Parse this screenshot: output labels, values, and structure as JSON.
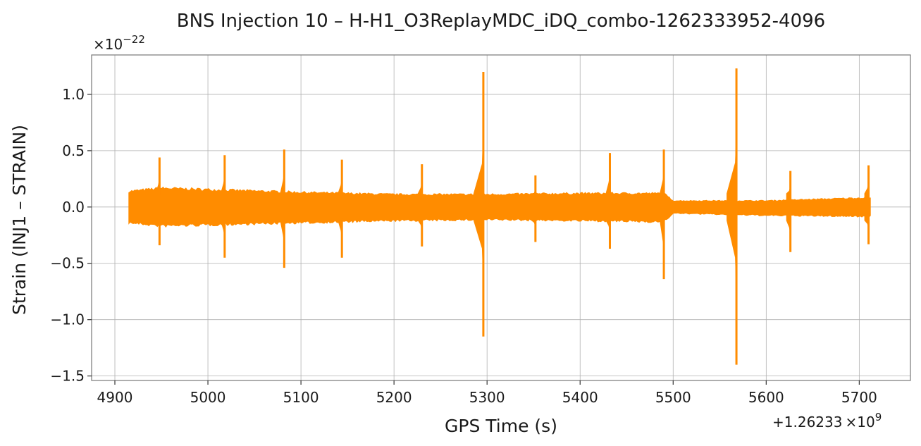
{
  "chart_data": {
    "type": "line",
    "title": "BNS Injection 10 – H-H1_O3ReplayMDC_iDQ_combo-1262333952-4096",
    "xlabel": "GPS Time (s)",
    "ylabel": "Strain (INJ1 – STRAIN)",
    "x_offset_label_main": "+1.26233",
    "x_offset_label_exp": "×10",
    "x_offset_label_sup": "9",
    "y_scale_label_main": "×10",
    "y_scale_label_sup": "−22",
    "xlim": [
      4875,
      5755
    ],
    "ylim": [
      -1.54,
      1.35
    ],
    "xticks": [
      4900,
      5000,
      5100,
      5200,
      5300,
      5400,
      5500,
      5600,
      5700
    ],
    "xtick_labels": [
      "4900",
      "5000",
      "5100",
      "5200",
      "5300",
      "5400",
      "5500",
      "5600",
      "5700"
    ],
    "yticks": [
      -1.5,
      -1.0,
      -0.5,
      0.0,
      0.5,
      1.0
    ],
    "ytick_labels": [
      "−1.5",
      "−1.0",
      "−0.5",
      "0.0",
      "0.5",
      "1.0"
    ],
    "grid": true,
    "series": [
      {
        "color": "#ff8c00",
        "x_range": [
          4915,
          5712
        ],
        "noise_band": [
          {
            "x": 4915,
            "upper": 0.15,
            "lower": -0.15
          },
          {
            "x": 4950,
            "upper": 0.18,
            "lower": -0.18
          },
          {
            "x": 5100,
            "upper": 0.14,
            "lower": -0.15
          },
          {
            "x": 5200,
            "upper": 0.12,
            "lower": -0.13
          },
          {
            "x": 5300,
            "upper": 0.12,
            "lower": -0.12
          },
          {
            "x": 5400,
            "upper": 0.13,
            "lower": -0.13
          },
          {
            "x": 5490,
            "upper": 0.13,
            "lower": -0.14
          },
          {
            "x": 5500,
            "upper": 0.06,
            "lower": -0.06
          },
          {
            "x": 5600,
            "upper": 0.06,
            "lower": -0.08
          },
          {
            "x": 5712,
            "upper": 0.09,
            "lower": -0.09
          }
        ],
        "spikes": [
          {
            "x": 4948,
            "upper": 0.44,
            "lower": -0.34
          },
          {
            "x": 5018,
            "upper": 0.46,
            "lower": -0.45
          },
          {
            "x": 5082,
            "upper": 0.51,
            "lower": -0.54
          },
          {
            "x": 5144,
            "upper": 0.42,
            "lower": -0.45
          },
          {
            "x": 5230,
            "upper": 0.38,
            "lower": -0.35
          },
          {
            "x": 5296,
            "upper": 1.2,
            "lower": -1.15
          },
          {
            "x": 5352,
            "upper": 0.28,
            "lower": -0.31
          },
          {
            "x": 5432,
            "upper": 0.48,
            "lower": -0.37
          },
          {
            "x": 5490,
            "upper": 0.51,
            "lower": -0.64
          },
          {
            "x": 5568,
            "upper": 1.23,
            "lower": -1.4
          },
          {
            "x": 5626,
            "upper": 0.32,
            "lower": -0.4
          },
          {
            "x": 5710,
            "upper": 0.37,
            "lower": -0.33
          }
        ]
      }
    ]
  }
}
